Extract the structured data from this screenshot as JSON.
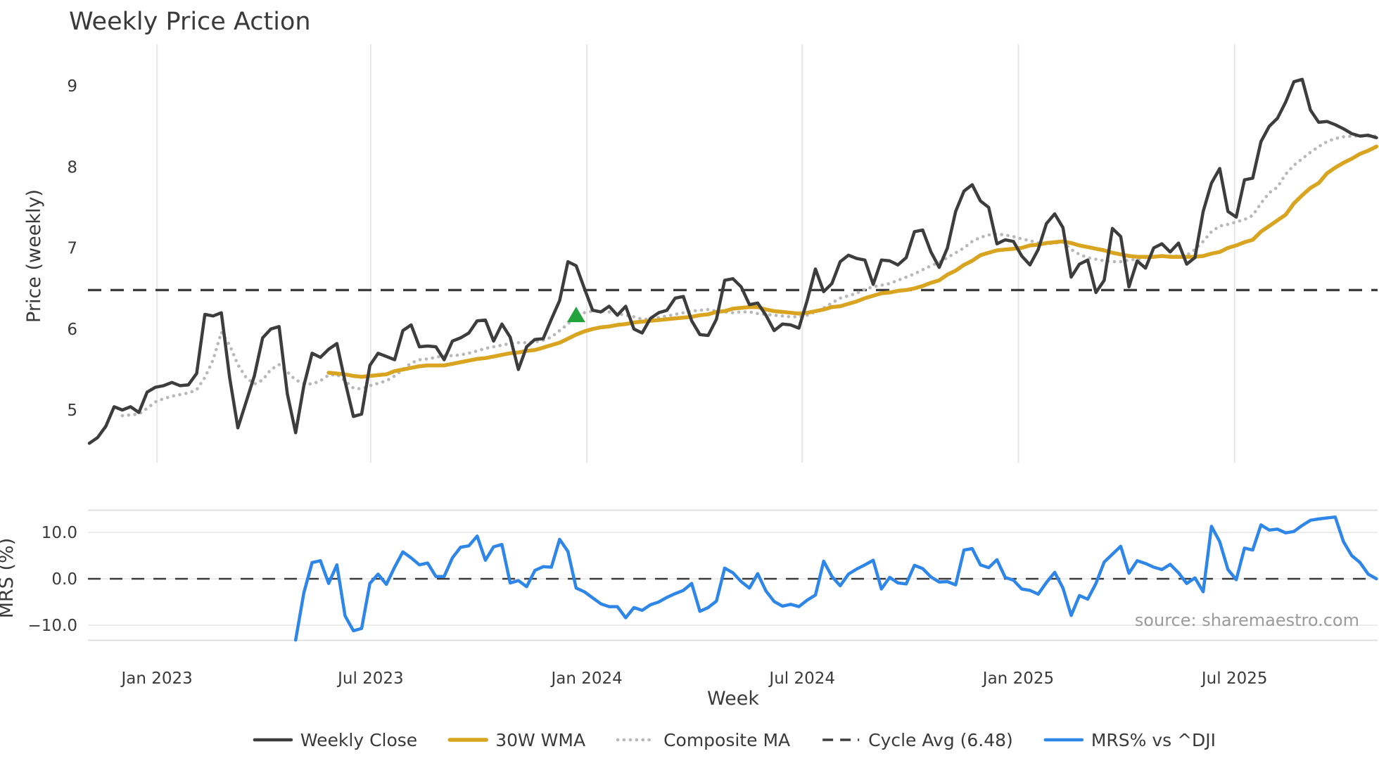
{
  "title": "Weekly Price Action",
  "source_note": "source: sharemaestro.com",
  "axes": {
    "x": {
      "label": "Week",
      "ticks": [
        {
          "label": "Jan 2023",
          "week": 8.2
        },
        {
          "label": "Jul 2023",
          "week": 34.1
        },
        {
          "label": "Jan 2024",
          "week": 60.3
        },
        {
          "label": "Jul 2024",
          "week": 86.4
        },
        {
          "label": "Jan 2025",
          "week": 112.6
        },
        {
          "label": "Jul 2025",
          "week": 138.8
        }
      ]
    },
    "price": {
      "label": "Price (weekly)",
      "ticks": [
        {
          "label": "9",
          "value": 9
        },
        {
          "label": "8",
          "value": 8
        },
        {
          "label": "7",
          "value": 7
        },
        {
          "label": "6",
          "value": 6
        },
        {
          "label": "5",
          "value": 5
        }
      ],
      "ylim": [
        4.33,
        9.52
      ]
    },
    "mrs": {
      "label": "MRS (%)",
      "ticks": [
        {
          "label": "10.0",
          "value": 10
        },
        {
          "label": "0.0",
          "value": 0
        },
        {
          "label": "−10.0",
          "value": -10
        }
      ],
      "ylim": [
        -13.3,
        14.85
      ]
    }
  },
  "legend": [
    {
      "label": "Weekly Close",
      "color": "#3d3d3d",
      "style": "solid"
    },
    {
      "label": "30W WMA",
      "color": "#d9a521",
      "style": "solid"
    },
    {
      "label": "Composite MA",
      "color": "#b9b9b9",
      "style": "dotted"
    },
    {
      "label": "Cycle Avg (6.48)",
      "color": "#3d3d3d",
      "style": "dashed"
    },
    {
      "label": "MRS% vs ^DJI",
      "color": "#2e86e8",
      "style": "solid"
    }
  ],
  "colors": {
    "weekly_close": "#3d3d3d",
    "wma": "#d9a521",
    "composite_ma": "#b9b9b9",
    "cycle_avg": "#3d3d3d",
    "mrs": "#2e86e8",
    "signal_marker": "#22a33c",
    "grid": "#e7e7e7",
    "panel_border": "#e0e0e0",
    "text": "#3a3a3a",
    "muted_text": "#9b9b9b"
  },
  "chart_data": [
    {
      "type": "line",
      "panel": "price",
      "title": "Weekly Price Action",
      "xlabel": "Week",
      "ylabel": "Price (weekly)",
      "x_unit": "week index, weekly bars starting ~Nov 2022 (index 8 = Jan 2023)",
      "ylim": [
        4.33,
        9.52
      ],
      "grid": "vertical-only",
      "x_ticks": [
        {
          "label": "Jan 2023",
          "week": 8.2
        },
        {
          "label": "Jul 2023",
          "week": 34.1
        },
        {
          "label": "Jan 2024",
          "week": 60.3
        },
        {
          "label": "Jul 2024",
          "week": 86.4
        },
        {
          "label": "Jan 2025",
          "week": 112.6
        },
        {
          "label": "Jul 2025",
          "week": 138.8
        }
      ],
      "series": [
        {
          "name": "Weekly Close",
          "color": "#3d3d3d",
          "style": "solid",
          "start_week": 0,
          "values": [
            4.59,
            4.66,
            4.8,
            5.04,
            5.0,
            5.04,
            4.97,
            5.22,
            5.28,
            5.3,
            5.34,
            5.3,
            5.31,
            5.45,
            6.18,
            6.16,
            6.2,
            5.4,
            4.78,
            5.1,
            5.42,
            5.89,
            6.0,
            6.03,
            5.2,
            4.72,
            5.3,
            5.7,
            5.65,
            5.75,
            5.82,
            5.35,
            4.92,
            4.95,
            5.55,
            5.7,
            5.66,
            5.62,
            5.98,
            6.05,
            5.78,
            5.79,
            5.78,
            5.62,
            5.85,
            5.89,
            5.95,
            6.1,
            6.11,
            5.85,
            6.06,
            5.9,
            5.5,
            5.78,
            5.87,
            5.88,
            6.12,
            6.35,
            6.83,
            6.78,
            6.5,
            6.23,
            6.21,
            6.28,
            6.17,
            6.28,
            6.0,
            5.95,
            6.13,
            6.2,
            6.23,
            6.38,
            6.4,
            6.1,
            5.93,
            5.92,
            6.12,
            6.6,
            6.62,
            6.52,
            6.3,
            6.32,
            6.17,
            5.98,
            6.06,
            6.05,
            6.01,
            6.35,
            6.74,
            6.46,
            6.56,
            6.83,
            6.91,
            6.87,
            6.85,
            6.55,
            6.85,
            6.84,
            6.79,
            6.88,
            7.2,
            7.22,
            6.95,
            6.76,
            7.0,
            7.45,
            7.7,
            7.78,
            7.58,
            7.5,
            7.05,
            7.1,
            7.08,
            6.9,
            6.79,
            6.98,
            7.3,
            7.42,
            7.25,
            6.64,
            6.8,
            6.85,
            6.45,
            6.6,
            7.24,
            7.14,
            6.52,
            6.84,
            6.75,
            7.0,
            7.05,
            6.95,
            7.06,
            6.8,
            6.88,
            7.45,
            7.8,
            7.98,
            7.45,
            7.38,
            7.84,
            7.86,
            8.31,
            8.5,
            8.6,
            8.8,
            9.05,
            9.08,
            8.7,
            8.55,
            8.56,
            8.52,
            8.47,
            8.41,
            8.38,
            8.39,
            8.36
          ]
        },
        {
          "name": "30W WMA",
          "color": "#d9a521",
          "style": "solid",
          "start_week": 29,
          "values": [
            5.46,
            5.45,
            5.44,
            5.42,
            5.41,
            5.42,
            5.43,
            5.44,
            5.48,
            5.5,
            5.52,
            5.54,
            5.55,
            5.55,
            5.55,
            5.57,
            5.59,
            5.61,
            5.63,
            5.64,
            5.66,
            5.68,
            5.7,
            5.71,
            5.73,
            5.74,
            5.77,
            5.8,
            5.83,
            5.88,
            5.93,
            5.97,
            6.0,
            6.02,
            6.03,
            6.05,
            6.06,
            6.08,
            6.09,
            6.1,
            6.11,
            6.12,
            6.13,
            6.14,
            6.15,
            6.17,
            6.18,
            6.21,
            6.22,
            6.25,
            6.26,
            6.27,
            6.27,
            6.24,
            6.22,
            6.21,
            6.2,
            6.19,
            6.2,
            6.22,
            6.24,
            6.27,
            6.28,
            6.31,
            6.34,
            6.38,
            6.41,
            6.44,
            6.45,
            6.47,
            6.48,
            6.5,
            6.53,
            6.57,
            6.6,
            6.67,
            6.72,
            6.79,
            6.84,
            6.91,
            6.94,
            6.97,
            6.98,
            6.99,
            7.0,
            7.03,
            7.04,
            7.06,
            7.07,
            7.08,
            7.06,
            7.03,
            7.01,
            6.99,
            6.97,
            6.94,
            6.92,
            6.9,
            6.89,
            6.89,
            6.89,
            6.9,
            6.89,
            6.89,
            6.89,
            6.89,
            6.9,
            6.93,
            6.95,
            7.0,
            7.03,
            7.07,
            7.1,
            7.2,
            7.27,
            7.34,
            7.41,
            7.55,
            7.65,
            7.74,
            7.8,
            7.92,
            7.99,
            8.05,
            8.1,
            8.16,
            8.2,
            8.25
          ]
        },
        {
          "name": "Composite MA",
          "color": "#b9b9b9",
          "style": "dotted",
          "start_week": 4,
          "values": [
            4.93,
            4.94,
            4.95,
            5.02,
            5.1,
            5.14,
            5.17,
            5.19,
            5.21,
            5.25,
            5.4,
            5.62,
            5.96,
            5.8,
            5.56,
            5.4,
            5.32,
            5.37,
            5.5,
            5.56,
            5.47,
            5.37,
            5.33,
            5.32,
            5.36,
            5.43,
            5.44,
            5.36,
            5.27,
            5.26,
            5.3,
            5.33,
            5.36,
            5.42,
            5.5,
            5.58,
            5.62,
            5.63,
            5.65,
            5.67,
            5.67,
            5.68,
            5.7,
            5.73,
            5.76,
            5.78,
            5.8,
            5.82,
            5.83,
            5.83,
            5.84,
            5.86,
            5.9,
            5.98,
            6.06,
            6.16,
            6.2,
            6.22,
            6.22,
            6.21,
            6.19,
            6.17,
            6.15,
            6.12,
            6.12,
            6.14,
            6.16,
            6.18,
            6.2,
            6.22,
            6.23,
            6.24,
            6.22,
            6.21,
            6.2,
            6.21,
            6.21,
            6.19,
            6.18,
            6.17,
            6.16,
            6.15,
            6.15,
            6.17,
            6.21,
            6.26,
            6.32,
            6.38,
            6.41,
            6.44,
            6.49,
            6.52,
            6.54,
            6.56,
            6.6,
            6.64,
            6.68,
            6.73,
            6.78,
            6.82,
            6.88,
            6.94,
            7.0,
            7.08,
            7.13,
            7.16,
            7.17,
            7.16,
            7.14,
            7.11,
            7.09,
            7.06,
            7.05,
            7.06,
            7.07,
            6.98,
            6.92,
            6.88,
            6.86,
            6.84,
            6.83,
            6.83,
            6.85,
            6.86,
            6.88,
            6.89,
            6.9,
            6.9,
            6.9,
            6.91,
            6.98,
            7.08,
            7.2,
            7.27,
            7.29,
            7.32,
            7.35,
            7.4,
            7.55,
            7.68,
            7.75,
            7.91,
            8.02,
            8.1,
            8.18,
            8.25,
            8.31,
            8.35,
            8.37,
            8.38,
            8.38,
            8.38,
            8.38
          ]
        },
        {
          "name": "Cycle Avg",
          "color": "#3d3d3d",
          "style": "dashed",
          "hline": true,
          "value": 6.48
        }
      ],
      "markers": [
        {
          "name": "buy-signal",
          "shape": "triangle-up",
          "color": "#22a33c",
          "week": 59,
          "value": 6.17
        }
      ]
    },
    {
      "type": "line",
      "panel": "mrs",
      "ylabel": "MRS (%)",
      "ylim": [
        -13.3,
        14.85
      ],
      "grid": "horizontal-only",
      "grid_values": [
        10,
        0,
        -10
      ],
      "series": [
        {
          "name": "MRS% vs ^DJI",
          "color": "#2e86e8",
          "style": "solid",
          "start_week": 25,
          "values": [
            -13.2,
            -3.0,
            3.5,
            3.9,
            -1.0,
            3.0,
            -8.0,
            -11.2,
            -10.7,
            -1.0,
            1.0,
            -1.2,
            2.5,
            5.8,
            4.5,
            3.0,
            3.4,
            0.5,
            0.5,
            4.5,
            6.8,
            7.1,
            9.2,
            4.0,
            6.9,
            7.4,
            -0.9,
            -0.4,
            -1.7,
            1.8,
            2.6,
            2.5,
            8.5,
            5.9,
            -2.0,
            -2.8,
            -4.1,
            -5.4,
            -6.0,
            -6.0,
            -8.4,
            -6.2,
            -6.8,
            -5.6,
            -5.0,
            -4.0,
            -3.2,
            -2.5,
            -1.0,
            -7.0,
            -6.2,
            -4.8,
            2.3,
            1.3,
            -0.6,
            -2.0,
            1.1,
            -2.6,
            -4.9,
            -5.9,
            -5.5,
            -6.0,
            -4.6,
            -3.5,
            3.8,
            0.5,
            -1.5,
            1.0,
            2.1,
            3.0,
            4.0,
            -2.2,
            0.3,
            -0.9,
            -1.1,
            2.9,
            2.2,
            0.4,
            -0.7,
            -0.6,
            -1.3,
            6.2,
            6.5,
            3.0,
            2.4,
            4.1,
            0.3,
            -0.3,
            -2.2,
            -2.5,
            -3.3,
            -0.8,
            1.4,
            -2.0,
            -7.9,
            -3.6,
            -4.4,
            -1.0,
            3.6,
            5.3,
            7.0,
            1.2,
            3.9,
            3.3,
            2.5,
            2.0,
            3.1,
            1.3,
            -1.0,
            0.2,
            -2.8,
            11.3,
            8.0,
            2.0,
            -0.2,
            6.6,
            6.2,
            11.6,
            10.5,
            10.7,
            9.9,
            10.2,
            11.5,
            12.6,
            12.9,
            13.1,
            13.3,
            8.0,
            5.0,
            3.5,
            1.0,
            0.0
          ]
        }
      ],
      "hlines": [
        {
          "value": 0,
          "style": "dashed",
          "color": "#3a3a3a"
        }
      ]
    }
  ]
}
